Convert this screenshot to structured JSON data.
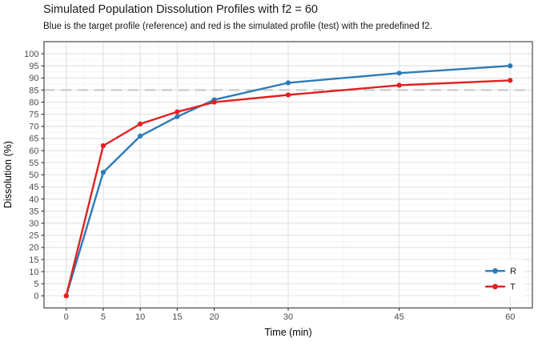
{
  "header": {
    "title": "Simulated Population Dissolution Profiles with f2 = 60",
    "subtitle": "Blue is the target profile (reference) and red is the simulated profile (test) with the predefined f2."
  },
  "chart_data": {
    "type": "line",
    "title": "Simulated Population Dissolution Profiles with f2 = 60",
    "subtitle": "Blue is the target profile (reference) and red is the simulated profile (test) with the predefined f2.",
    "xlabel": "Time (min)",
    "ylabel": "Dissolution (%)",
    "x": [
      0,
      5,
      10,
      15,
      20,
      30,
      45,
      60
    ],
    "series": [
      {
        "name": "R",
        "label": "R",
        "color": "#2b7bb9",
        "values": [
          0,
          51,
          66,
          74,
          81,
          88,
          92,
          95
        ]
      },
      {
        "name": "T",
        "label": "T",
        "color": "#e0211f",
        "values": [
          0,
          62,
          71,
          76,
          80,
          83,
          87,
          89
        ]
      }
    ],
    "xlim": [
      0,
      60
    ],
    "ylim": [
      0,
      100
    ],
    "x_ticks": [
      0,
      5,
      10,
      15,
      20,
      30,
      45,
      60
    ],
    "y_ticks": [
      0,
      5,
      10,
      15,
      20,
      25,
      30,
      35,
      40,
      45,
      50,
      55,
      60,
      65,
      70,
      75,
      80,
      85,
      90,
      95,
      100
    ],
    "x_minor": [
      -2.5,
      2.5,
      7.5,
      12.5,
      17.5,
      25,
      37.5,
      52.5,
      62.5
    ],
    "y_minor": [
      -2.5,
      2.5,
      7.5,
      12.5,
      17.5,
      22.5,
      27.5,
      32.5,
      37.5,
      42.5,
      47.5,
      52.5,
      57.5,
      62.5,
      67.5,
      72.5,
      77.5,
      82.5,
      87.5,
      92.5,
      97.5,
      102.5
    ],
    "reference_line": {
      "y": 85,
      "style": "dashed",
      "color": "#c8c8c8"
    },
    "legend": {
      "position": "bottom-right",
      "items": [
        "R",
        "T"
      ]
    },
    "grid": true,
    "colors": {
      "background": "#ffffff",
      "panel_background": "#ffffff",
      "grid_major": "#e2e2e2",
      "grid_minor": "#f0f0f0",
      "panel_border": "#474747",
      "tick": "#333333",
      "tick_label": "#4d4d4d",
      "axis_title": "#000000",
      "legend_text": "#1a1a1a",
      "legend_background": "#ffffff"
    }
  }
}
